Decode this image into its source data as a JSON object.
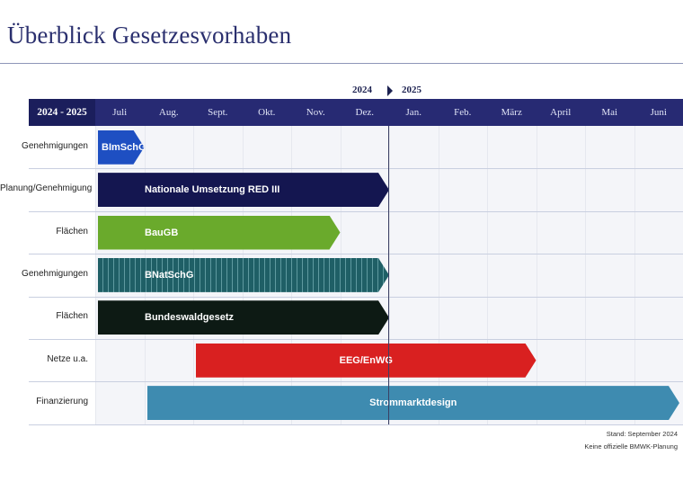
{
  "title": "Überblick Gesetzesvorhaben",
  "header": {
    "range_label": "2024 - 2025",
    "year_left": "2024",
    "year_right": "2025",
    "months": [
      "Juli",
      "Aug.",
      "Sept.",
      "Okt.",
      "Nov.",
      "Dez.",
      "Jan.",
      "Feb.",
      "März",
      "April",
      "Mai",
      "Juni"
    ]
  },
  "chart_data": {
    "type": "gantt",
    "categories": [
      "Juli",
      "Aug.",
      "Sept.",
      "Okt.",
      "Nov.",
      "Dez.",
      "Jan.",
      "Feb.",
      "März",
      "April",
      "Mai",
      "Juni"
    ],
    "rows": [
      {
        "row_label": "Genehmigungen",
        "bar_label": "BImSchG",
        "start_month": 0,
        "end_month": 1,
        "color": "#1e4fc2",
        "pattern": "solid"
      },
      {
        "row_label": "Planung/Genehmigung",
        "bar_label": "Nationale Umsetzung RED III",
        "start_month": 0,
        "end_month": 6,
        "color": "#141650",
        "pattern": "solid"
      },
      {
        "row_label": "Flächen",
        "bar_label": "BauGB",
        "start_month": 0,
        "end_month": 5,
        "color": "#6aaa2c",
        "pattern": "solid"
      },
      {
        "row_label": "Genehmigungen",
        "bar_label": "BNatSchG",
        "start_month": 0,
        "end_month": 6,
        "color": "#1f5f66",
        "pattern": "striped"
      },
      {
        "row_label": "Flächen",
        "bar_label": "Bundeswaldgesetz",
        "start_month": 0,
        "end_month": 6,
        "color": "#0d1a14",
        "pattern": "solid"
      },
      {
        "row_label": "Netze u.a.",
        "bar_label": "EEG/EnWG",
        "start_month": 2,
        "end_month": 9,
        "color": "#d92020",
        "pattern": "solid"
      },
      {
        "row_label": "Finanzierung",
        "bar_label": "Strommarktdesign",
        "start_month": 1,
        "end_month": 12,
        "color": "#3e8bb0",
        "pattern": "solid"
      }
    ],
    "current_marker_month": 6
  },
  "footer": {
    "line1": "Stand: September 2024",
    "line2": "Keine offizielle BMWK-Planung"
  }
}
